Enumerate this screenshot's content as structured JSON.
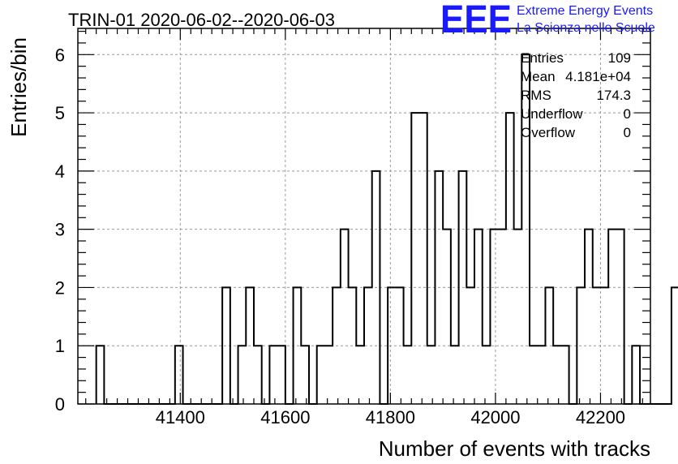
{
  "chart_data": {
    "type": "bar",
    "title": "TRIN-01 2020-06-02--2020-06-03",
    "xlabel": "Number of events with tracks",
    "ylabel": "Entries/bin",
    "xlim": [
      41205,
      42295
    ],
    "ylim": [
      0,
      6.45
    ],
    "xticks": [
      41400,
      41600,
      41800,
      42000,
      42200
    ],
    "xtick_labels": [
      "41400",
      "41600",
      "41800",
      "42000",
      "42200"
    ],
    "yticks": [
      0,
      1,
      2,
      3,
      4,
      5,
      6
    ],
    "ytick_labels": [
      "0",
      "1",
      "2",
      "3",
      "4",
      "5",
      "6"
    ],
    "grid": true,
    "bin_start": 41240,
    "bin_width": 15,
    "values": [
      1,
      0,
      0,
      0,
      0,
      0,
      0,
      0,
      0,
      0,
      1,
      0,
      0,
      0,
      0,
      0,
      2,
      0,
      1,
      2,
      1,
      0,
      1,
      1,
      0,
      2,
      1,
      0,
      1,
      1,
      2,
      3,
      2,
      1,
      2,
      4,
      0,
      2,
      2,
      1,
      5,
      5,
      1,
      4,
      3,
      1,
      4,
      2,
      3,
      1,
      3,
      3,
      5,
      3,
      6,
      1,
      1,
      2,
      1,
      1,
      0,
      2,
      3,
      2,
      2,
      3,
      3,
      0,
      1,
      0,
      0,
      0,
      0,
      2,
      0,
      0,
      0,
      1,
      0,
      0,
      0,
      1,
      0,
      0
    ],
    "stats": {
      "entries_label": "Entries",
      "entries_value": "109",
      "mean_label": "Mean",
      "mean_value": "4.181e+04",
      "rms_label": "RMS",
      "rms_value": "174.3",
      "underflow_label": "Underflow",
      "underflow_value": "0",
      "overflow_label": "Overflow",
      "overflow_value": "0"
    }
  },
  "logo": {
    "mark": "EEE",
    "line1": "Extreme Energy Events",
    "line2": "La Scienza nelle Scuole"
  },
  "colors": {
    "line": "#000000",
    "grid": "#999999",
    "logo": "#1a1aff"
  }
}
